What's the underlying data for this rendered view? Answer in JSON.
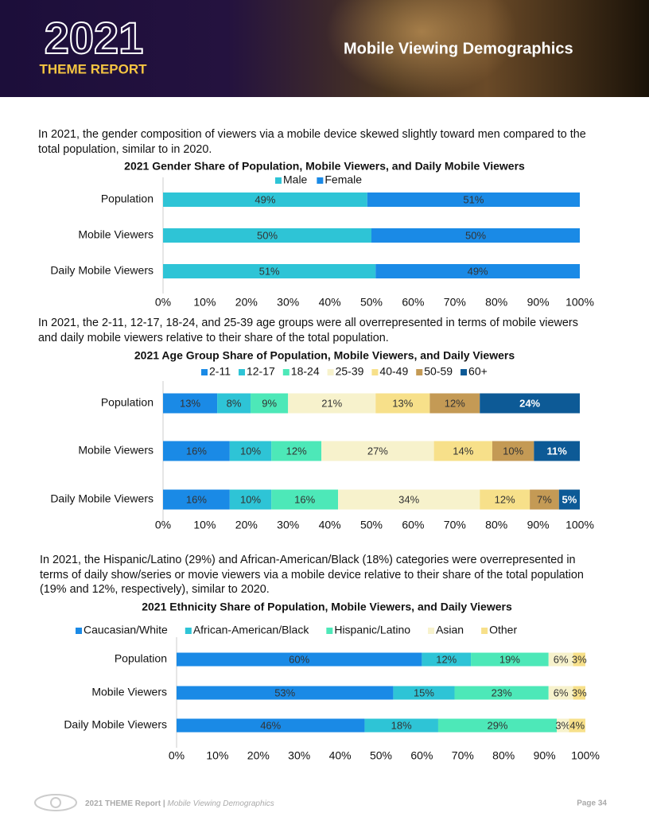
{
  "header": {
    "year": "2021",
    "subtitle": "THEME REPORT",
    "title": "Mobile Viewing Demographics"
  },
  "paragraphs": [
    "In 2021, the gender composition of viewers via a mobile device skewed slightly toward men compared to the total population, similar to in 2020.",
    "In 2021, the 2-11, 12-17, 18-24, and 25-39 age groups were all overrepresented in terms of mobile viewers and daily mobile viewers relative to their share of the total population.",
    "In 2021, the Hispanic/Latino (29%) and African-American/Black (18%) categories were overrepresented in terms of daily show/series or movie viewers via a mobile device relative to their share of the total population (19% and 12%, respectively), similar to 2020."
  ],
  "chart_data": [
    {
      "type": "bar",
      "orientation": "horizontal",
      "stacked": true,
      "legend": "top",
      "title": "2021 Gender Share of Population, Mobile Viewers, and Daily Mobile Viewers",
      "categories": [
        "Population",
        "Mobile Viewers",
        "Daily Mobile Viewers"
      ],
      "series": [
        {
          "name": "Male",
          "color": "#2ec4d6",
          "values": [
            49,
            50,
            51
          ],
          "value_labels": [
            "49%",
            "50%",
            "51%"
          ]
        },
        {
          "name": "Female",
          "color": "#1a8ae6",
          "values": [
            51,
            50,
            49
          ],
          "value_labels": [
            "51%",
            "50%",
            "49%"
          ]
        }
      ],
      "xlim": [
        0,
        100
      ],
      "xticks": [
        {
          "value": 0,
          "label": "0%"
        },
        {
          "value": 10,
          "label": "10%"
        },
        {
          "value": 20,
          "label": "20%"
        },
        {
          "value": 30,
          "label": "30%"
        },
        {
          "value": 40,
          "label": "40%"
        },
        {
          "value": 50,
          "label": "50%"
        },
        {
          "value": 60,
          "label": "60%"
        },
        {
          "value": 70,
          "label": "70%"
        },
        {
          "value": 80,
          "label": "80%"
        },
        {
          "value": 90,
          "label": "90%"
        },
        {
          "value": 100,
          "label": "100%"
        }
      ]
    },
    {
      "type": "bar",
      "orientation": "horizontal",
      "stacked": true,
      "legend": "top",
      "title": "2021 Age Group Share of Population, Mobile Viewers, and Daily Viewers",
      "categories": [
        "Population",
        "Mobile Viewers",
        "Daily Mobile Viewers"
      ],
      "series": [
        {
          "name": "2-11",
          "color": "#1a8ae6",
          "values": [
            13,
            16,
            16
          ],
          "value_labels": [
            "13%",
            "16%",
            "16%"
          ]
        },
        {
          "name": "12-17",
          "color": "#2ec4d6",
          "values": [
            8,
            10,
            10
          ],
          "value_labels": [
            "8%",
            "10%",
            "10%"
          ]
        },
        {
          "name": "18-24",
          "color": "#4de8b8",
          "values": [
            9,
            12,
            16
          ],
          "value_labels": [
            "9%",
            "12%",
            "16%"
          ]
        },
        {
          "name": "25-39",
          "color": "#f7f2cc",
          "values": [
            21,
            27,
            34
          ],
          "value_labels": [
            "21%",
            "27%",
            "34%"
          ]
        },
        {
          "name": "40-49",
          "color": "#f7e08a",
          "values": [
            13,
            14,
            12
          ],
          "value_labels": [
            "13%",
            "14%",
            "12%"
          ]
        },
        {
          "name": "50-59",
          "color": "#c49a55",
          "values": [
            12,
            10,
            7
          ],
          "value_labels": [
            "12%",
            "10%",
            "7%"
          ]
        },
        {
          "name": "60+",
          "color": "#0d5a96",
          "label_color": "#ffffff",
          "values": [
            24,
            11,
            5
          ],
          "value_labels": [
            "24%",
            "11%",
            "5%"
          ]
        }
      ],
      "xlim": [
        0,
        100
      ],
      "xticks": [
        {
          "value": 0,
          "label": "0%"
        },
        {
          "value": 10,
          "label": "10%"
        },
        {
          "value": 20,
          "label": "20%"
        },
        {
          "value": 30,
          "label": "30%"
        },
        {
          "value": 40,
          "label": "40%"
        },
        {
          "value": 50,
          "label": "50%"
        },
        {
          "value": 60,
          "label": "60%"
        },
        {
          "value": 70,
          "label": "70%"
        },
        {
          "value": 80,
          "label": "80%"
        },
        {
          "value": 90,
          "label": "90%"
        },
        {
          "value": 100,
          "label": "100%"
        }
      ]
    },
    {
      "type": "bar",
      "orientation": "horizontal",
      "stacked": true,
      "legend": "top",
      "title": "2021 Ethnicity Share of Population, Mobile Viewers, and Daily Viewers",
      "categories": [
        "Population",
        "Mobile Viewers",
        "Daily Mobile Viewers"
      ],
      "series": [
        {
          "name": "Caucasian/White",
          "color": "#1a8ae6",
          "values": [
            60,
            53,
            46
          ],
          "value_labels": [
            "60%",
            "53%",
            "46%"
          ]
        },
        {
          "name": "African-American/Black",
          "color": "#2ec4d6",
          "values": [
            12,
            15,
            18
          ],
          "value_labels": [
            "12%",
            "15%",
            "18%"
          ]
        },
        {
          "name": "Hispanic/Latino",
          "color": "#4de8b8",
          "values": [
            19,
            23,
            29
          ],
          "value_labels": [
            "19%",
            "23%",
            "29%"
          ]
        },
        {
          "name": "Asian",
          "color": "#f7f2cc",
          "values": [
            6,
            6,
            3
          ],
          "value_labels": [
            "6%",
            "6%",
            "3%"
          ]
        },
        {
          "name": "Other",
          "color": "#f7e08a",
          "values": [
            3,
            3,
            4
          ],
          "value_labels": [
            "3%",
            "3%",
            "4%"
          ]
        }
      ],
      "xlim": [
        0,
        100
      ],
      "xticks": [
        {
          "value": 0,
          "label": "0%"
        },
        {
          "value": 10,
          "label": "10%"
        },
        {
          "value": 20,
          "label": "20%"
        },
        {
          "value": 30,
          "label": "30%"
        },
        {
          "value": 40,
          "label": "40%"
        },
        {
          "value": 50,
          "label": "50%"
        },
        {
          "value": 60,
          "label": "60%"
        },
        {
          "value": 70,
          "label": "70%"
        },
        {
          "value": 80,
          "label": "80%"
        },
        {
          "value": 90,
          "label": "90%"
        },
        {
          "value": 100,
          "label": "100%"
        }
      ]
    }
  ],
  "footer": {
    "report": "2021 THEME Report",
    "separator": "|",
    "section": "Mobile Viewing Demographics",
    "page": "Page 34"
  }
}
